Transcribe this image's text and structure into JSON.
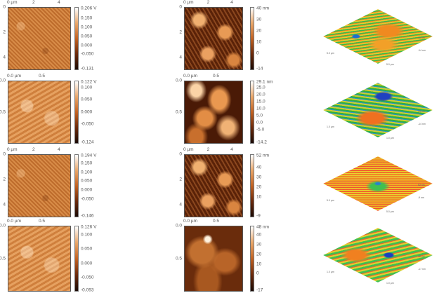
{
  "rows": [
    {
      "phase": {
        "x_ticks": [
          "0 µm",
          "2",
          "4"
        ],
        "y_ticks": [
          "0",
          "2",
          "4"
        ],
        "range": 5,
        "cb": [
          "0.206 V",
          "0.150",
          "0.100",
          "0.050",
          "0.000",
          "-0.050",
          "-0.131"
        ],
        "cb_vals": [
          0.206,
          0.15,
          0.1,
          0.05,
          0,
          -0.05,
          -0.131
        ]
      },
      "height": {
        "x_ticks": [
          "0 µm",
          "2",
          "4"
        ],
        "y_ticks": [
          "0",
          "2",
          "4"
        ],
        "range": 5,
        "cb": [
          "40 nm",
          "30",
          "20",
          "10",
          "0",
          "-14"
        ],
        "cb_vals": [
          40,
          30,
          20,
          10,
          0,
          -14
        ]
      },
      "surface": {
        "z_max": "40 nm",
        "z_min": "-14 nm",
        "x_len": "5.0 µm",
        "y_len": "5.0 µm"
      }
    },
    {
      "phase": {
        "x_ticks": [
          "0.0 µm",
          "0.5"
        ],
        "y_ticks": [
          "0.0",
          "0.5"
        ],
        "range": 1,
        "cb": [
          "0.122 V",
          "0.100",
          "0.050",
          "0.000",
          "-0.050",
          "-0.124"
        ],
        "cb_vals": [
          0.122,
          0.1,
          0.05,
          0,
          -0.05,
          -0.124
        ]
      },
      "height": {
        "x_ticks": [
          "0.0 µm",
          "0.5"
        ],
        "y_ticks": [
          "0.0",
          "0.5"
        ],
        "range": 1,
        "cb": [
          "29.1 nm",
          "25.0",
          "20.0",
          "15.0",
          "10.0",
          "5.0",
          "0.0",
          "-5.0",
          "-14.2"
        ],
        "cb_vals": [
          29.1,
          25,
          20,
          15,
          10,
          5,
          0,
          -5,
          -14.2
        ]
      },
      "surface": {
        "z_max": "29 nm",
        "z_min": "-14 nm",
        "x_len": "1.0 µm",
        "y_len": "1.0 µm"
      }
    },
    {
      "phase": {
        "x_ticks": [
          "0 µm",
          "2",
          "4"
        ],
        "y_ticks": [
          "0",
          "2",
          "4"
        ],
        "range": 5,
        "cb": [
          "0.194 V",
          "0.150",
          "0.100",
          "0.050",
          "0.000",
          "-0.050",
          "-0.146"
        ],
        "cb_vals": [
          0.194,
          0.15,
          0.1,
          0.05,
          0,
          -0.05,
          -0.146
        ]
      },
      "height": {
        "x_ticks": [
          "0 µm",
          "2",
          "4"
        ],
        "y_ticks": [
          "0",
          "2",
          "4"
        ],
        "range": 5,
        "cb": [
          "52 nm",
          "40",
          "30",
          "20",
          "10",
          "-9"
        ],
        "cb_vals": [
          52,
          40,
          30,
          20,
          10,
          -9
        ]
      },
      "surface": {
        "z_max": "52 nm",
        "z_min": "-9 nm",
        "x_len": "5.0 µm",
        "y_len": "5.0 µm"
      }
    },
    {
      "phase": {
        "x_ticks": [
          "0.0 µm",
          "0.5"
        ],
        "y_ticks": [
          "0.0",
          "0.5"
        ],
        "range": 1,
        "cb": [
          "0.126 V",
          "0.100",
          "0.050",
          "0.000",
          "-0.050",
          "-0.093"
        ],
        "cb_vals": [
          0.126,
          0.1,
          0.05,
          0,
          -0.05,
          -0.093
        ]
      },
      "height": {
        "x_ticks": [
          "0.0 µm",
          "0.5"
        ],
        "y_ticks": [
          "0.0",
          "0.5"
        ],
        "range": 1,
        "cb": [
          "48 nm",
          "40",
          "30",
          "20",
          "10",
          "0",
          "-17"
        ],
        "cb_vals": [
          48,
          40,
          30,
          20,
          10,
          0,
          -17
        ]
      },
      "surface": {
        "z_max": "48 nm",
        "z_min": "-17 nm",
        "x_len": "1.0 µm",
        "y_len": "1.0 µm"
      }
    }
  ]
}
